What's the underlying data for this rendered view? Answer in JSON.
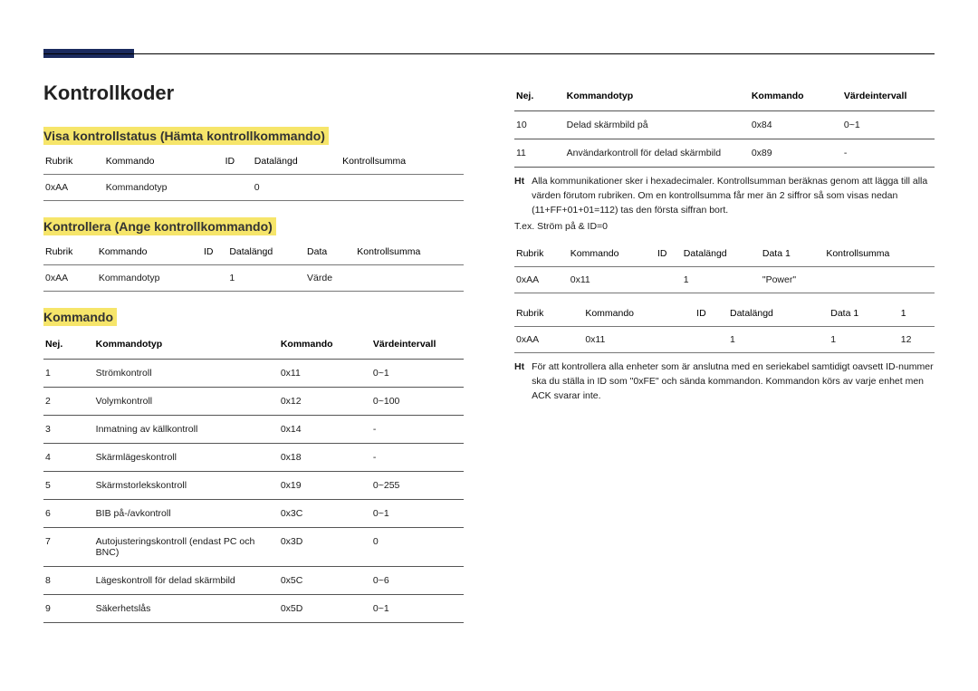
{
  "colors": {
    "accent_bar": "#1a2a5e",
    "highlight": "#f6e56a",
    "rule": "#555555",
    "text": "#1a1a1a",
    "background": "#ffffff"
  },
  "header": {
    "title": "Kontrollkoder"
  },
  "left": {
    "sec1_title": "Visa kontrollstatus (Hämta kontrollkommando)",
    "sec1_table": {
      "headers": [
        "Rubrik",
        "Kommando",
        "ID",
        "Datalängd",
        "Kontrollsumma"
      ],
      "row": [
        "0xAA",
        "Kommandotyp",
        "",
        "0",
        ""
      ]
    },
    "sec2_title": "Kontrollera (Ange kontrollkommando)",
    "sec2_table": {
      "headers": [
        "Rubrik",
        "Kommando",
        "ID",
        "Datalängd",
        "Data",
        "Kontrollsumma"
      ],
      "row": [
        "0xAA",
        "Kommandotyp",
        "",
        "1",
        "Värde",
        ""
      ]
    },
    "sec3_title": "Kommando",
    "cmd_headers": [
      "Nej.",
      "Kommandotyp",
      "Kommando",
      "Värdeintervall"
    ],
    "cmd_rows": [
      [
        "1",
        "Strömkontroll",
        "0x11",
        "0~1"
      ],
      [
        "2",
        "Volymkontroll",
        "0x12",
        "0~100"
      ],
      [
        "3",
        "Inmatning av källkontroll",
        "0x14",
        "-"
      ],
      [
        "4",
        "Skärmlägeskontroll",
        "0x18",
        "-"
      ],
      [
        "5",
        "Skärmstorlekskontroll",
        "0x19",
        "0~255"
      ],
      [
        "6",
        "BIB på-/avkontroll",
        "0x3C",
        "0~1"
      ],
      [
        "7",
        "Autojusteringskontroll (endast PC och BNC)",
        "0x3D",
        "0"
      ],
      [
        "8",
        "Lägeskontroll för delad skärmbild",
        "0x5C",
        "0~6"
      ],
      [
        "9",
        "Säkerhetslås",
        "0x5D",
        "0~1"
      ]
    ]
  },
  "right": {
    "cmd_headers": [
      "Nej.",
      "Kommandotyp",
      "Kommando",
      "Värdeintervall"
    ],
    "cmd_rows_cont": [
      [
        "10",
        "Delad skärmbild på",
        "0x84",
        "0~1"
      ],
      [
        "11",
        "Användarkontroll för delad skärmbild",
        "0x89",
        "-"
      ]
    ],
    "note1_lbl": "Ht",
    "note1_body": "Alla kommunikationer sker i hexadecimaler. Kontrollsumman beräknas genom att lägga till alla värden förutom rubriken. Om en kontrollsumma får mer än 2 siffror så som visas nedan (11+FF+01+01=112) tas den första siffran bort.",
    "example_line": "T.ex. Ström på & ID=0",
    "tableA": {
      "headers": [
        "Rubrik",
        "Kommando",
        "ID",
        "Datalängd",
        "Data 1",
        "Kontrollsumma"
      ],
      "row": [
        "0xAA",
        "0x11",
        "",
        "1",
        "\"Power\"",
        ""
      ]
    },
    "tableB": {
      "headers": [
        "Rubrik",
        "Kommando",
        "ID",
        "Datalängd",
        "Data 1",
        "1"
      ],
      "row": [
        "0xAA",
        "0x11",
        "",
        "1",
        "1",
        "12"
      ]
    },
    "note2_lbl": "Ht",
    "note2_body": "För att kontrollera alla enheter som är anslutna med en seriekabel samtidigt oavsett ID-nummer ska du ställa in ID som \"0xFE\" och sända kommandon. Kommandon körs av varje enhet men ACK svarar inte."
  }
}
